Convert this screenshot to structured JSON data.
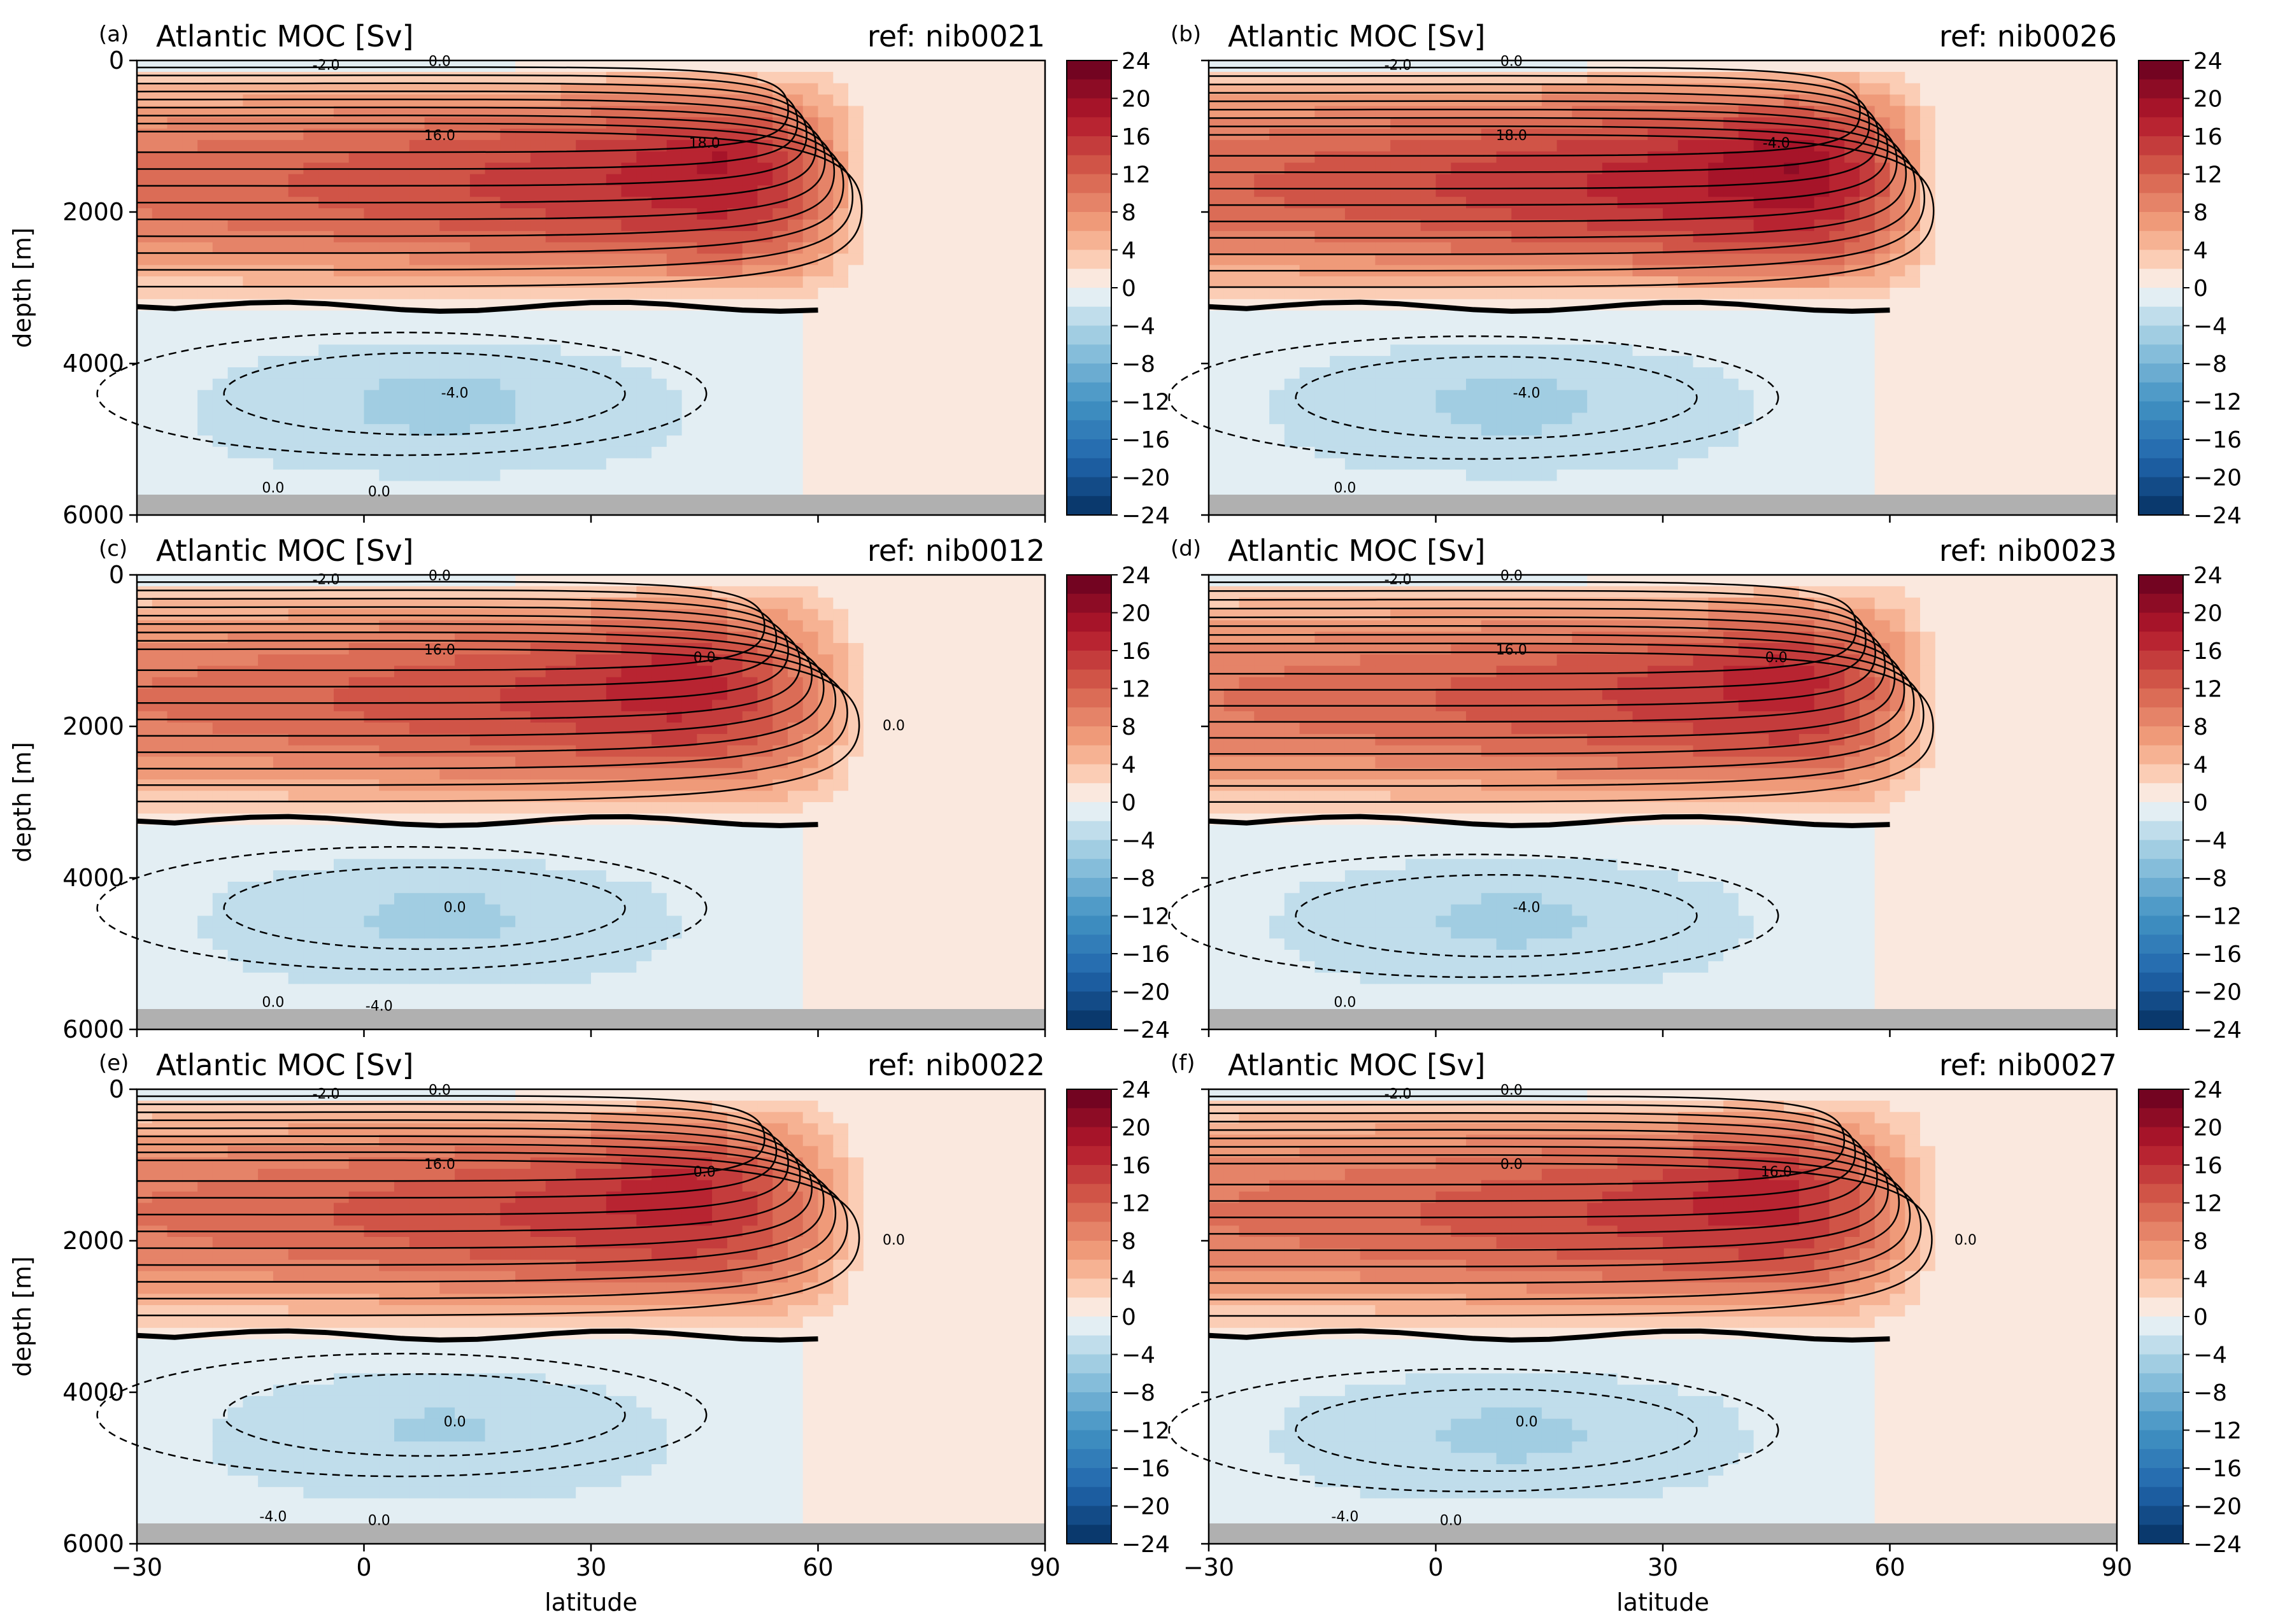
{
  "figure": {
    "xlabel": "latitude",
    "ylabel": "depth [m]"
  },
  "colors": {
    "land_mask": "#b0b0b0",
    "zero_contour": "#000000",
    "contour": "#000000"
  },
  "colormap": {
    "name": "RdBu_r",
    "levels": [
      -24,
      -22,
      -20,
      -18,
      -16,
      -14,
      -12,
      -10,
      -8,
      -6,
      -4,
      -2,
      0,
      2,
      4,
      6,
      8,
      10,
      12,
      14,
      16,
      18,
      20,
      22,
      24
    ],
    "tick_labels": [
      "24",
      "20",
      "16",
      "12",
      "8",
      "4",
      "0",
      "−4",
      "−8",
      "−12",
      "−16",
      "−20",
      "−24"
    ],
    "tick_values": [
      24,
      20,
      16,
      12,
      8,
      4,
      0,
      -4,
      -8,
      -12,
      -16,
      -20,
      -24
    ]
  },
  "chart_data": [
    {
      "type": "heatmap",
      "tag": "(a)",
      "title": "Atlantic MOC [Sv]",
      "ref": "ref: nib0021",
      "xlim": [
        -30,
        90
      ],
      "ylim": [
        6000,
        0
      ],
      "xticks": [
        -30,
        0,
        30,
        60,
        90
      ],
      "yticks": [
        0,
        2000,
        4000,
        6000
      ],
      "max_cell": {
        "lat": 46,
        "depth": 1100,
        "value": 18.5
      },
      "upper_cell_north_edge_lat": 67,
      "zero_line_depth": 3250,
      "abw_min": {
        "lat": 10,
        "depth": 4400,
        "value": -4.6
      },
      "contour_labels": [
        "-2.0",
        "0.0",
        "16.0",
        "18.0",
        "-4.0",
        "0.0",
        "0.0"
      ]
    },
    {
      "type": "heatmap",
      "tag": "(b)",
      "title": "Atlantic MOC [Sv]",
      "ref": "ref: nib0026",
      "xlim": [
        -30,
        90
      ],
      "ylim": [
        6000,
        0
      ],
      "xticks": [
        -30,
        0,
        30,
        60,
        90
      ],
      "yticks": [
        0,
        2000,
        4000,
        6000
      ],
      "max_cell": {
        "lat": 46,
        "depth": 1150,
        "value": 20.2
      },
      "upper_cell_north_edge_lat": 67,
      "zero_line_depth": 3250,
      "abw_min": {
        "lat": 10,
        "depth": 4450,
        "value": -4.5
      },
      "contour_labels": [
        "-2.0",
        "0.0",
        "18.0",
        "-4.0",
        "-4.0",
        "0.0"
      ]
    },
    {
      "type": "heatmap",
      "tag": "(c)",
      "title": "Atlantic MOC [Sv]",
      "ref": "ref: nib0012",
      "xlim": [
        -30,
        90
      ],
      "ylim": [
        6000,
        0
      ],
      "xticks": [
        -30,
        0,
        30,
        60,
        90
      ],
      "yticks": [
        0,
        2000,
        4000,
        6000
      ],
      "max_cell": {
        "lat": 40,
        "depth": 1150,
        "value": 17.5
      },
      "upper_cell_north_edge_lat": 67,
      "zero_line_depth": 3250,
      "abw_min": {
        "lat": 10,
        "depth": 4400,
        "value": -4.4
      },
      "contour_labels": [
        "-2.0",
        "0.0",
        "16.0",
        "0.0",
        "0.0",
        "0.0",
        "-4.0",
        "0.0"
      ]
    },
    {
      "type": "heatmap",
      "tag": "(d)",
      "title": "Atlantic MOC [Sv]",
      "ref": "ref: nib0023",
      "xlim": [
        -30,
        90
      ],
      "ylim": [
        6000,
        0
      ],
      "xticks": [
        -30,
        0,
        30,
        60,
        90
      ],
      "yticks": [
        0,
        2000,
        4000,
        6000
      ],
      "max_cell": {
        "lat": 45,
        "depth": 1200,
        "value": 17.3
      },
      "upper_cell_north_edge_lat": 67,
      "zero_line_depth": 3250,
      "abw_min": {
        "lat": 10,
        "depth": 4500,
        "value": -4.4
      },
      "contour_labels": [
        "-2.0",
        "0.0",
        "16.0",
        "0.0",
        "-4.0",
        "0.0"
      ]
    },
    {
      "type": "heatmap",
      "tag": "(e)",
      "title": "Atlantic MOC [Sv]",
      "ref": "ref: nib0022",
      "xlim": [
        -30,
        90
      ],
      "ylim": [
        6000,
        0
      ],
      "xticks": [
        -30,
        0,
        30,
        60,
        90
      ],
      "yticks": [
        0,
        2000,
        4000,
        6000
      ],
      "max_cell": {
        "lat": 40,
        "depth": 1100,
        "value": 17.5
      },
      "upper_cell_north_edge_lat": 67,
      "zero_line_depth": 3250,
      "abw_min": {
        "lat": 10,
        "depth": 4300,
        "value": -4.2
      },
      "contour_labels": [
        "-2.0",
        "0.0",
        "16.0",
        "0.0",
        "0.0",
        "-4.0",
        "0.0",
        "0.0"
      ]
    },
    {
      "type": "heatmap",
      "tag": "(f)",
      "title": "Atlantic MOC [Sv]",
      "ref": "ref: nib0027",
      "xlim": [
        -30,
        90
      ],
      "ylim": [
        6000,
        0
      ],
      "xticks": [
        -30,
        0,
        30,
        60,
        90
      ],
      "yticks": [
        0,
        2000,
        4000,
        6000
      ],
      "max_cell": {
        "lat": 42,
        "depth": 1150,
        "value": 17.4
      },
      "upper_cell_north_edge_lat": 67,
      "zero_line_depth": 3250,
      "abw_min": {
        "lat": 10,
        "depth": 4500,
        "value": -4.4
      },
      "contour_labels": [
        "-2.0",
        "0.0",
        "0.0",
        "16.0",
        "0.0",
        "-4.0",
        "0.0",
        "0.0"
      ]
    }
  ]
}
